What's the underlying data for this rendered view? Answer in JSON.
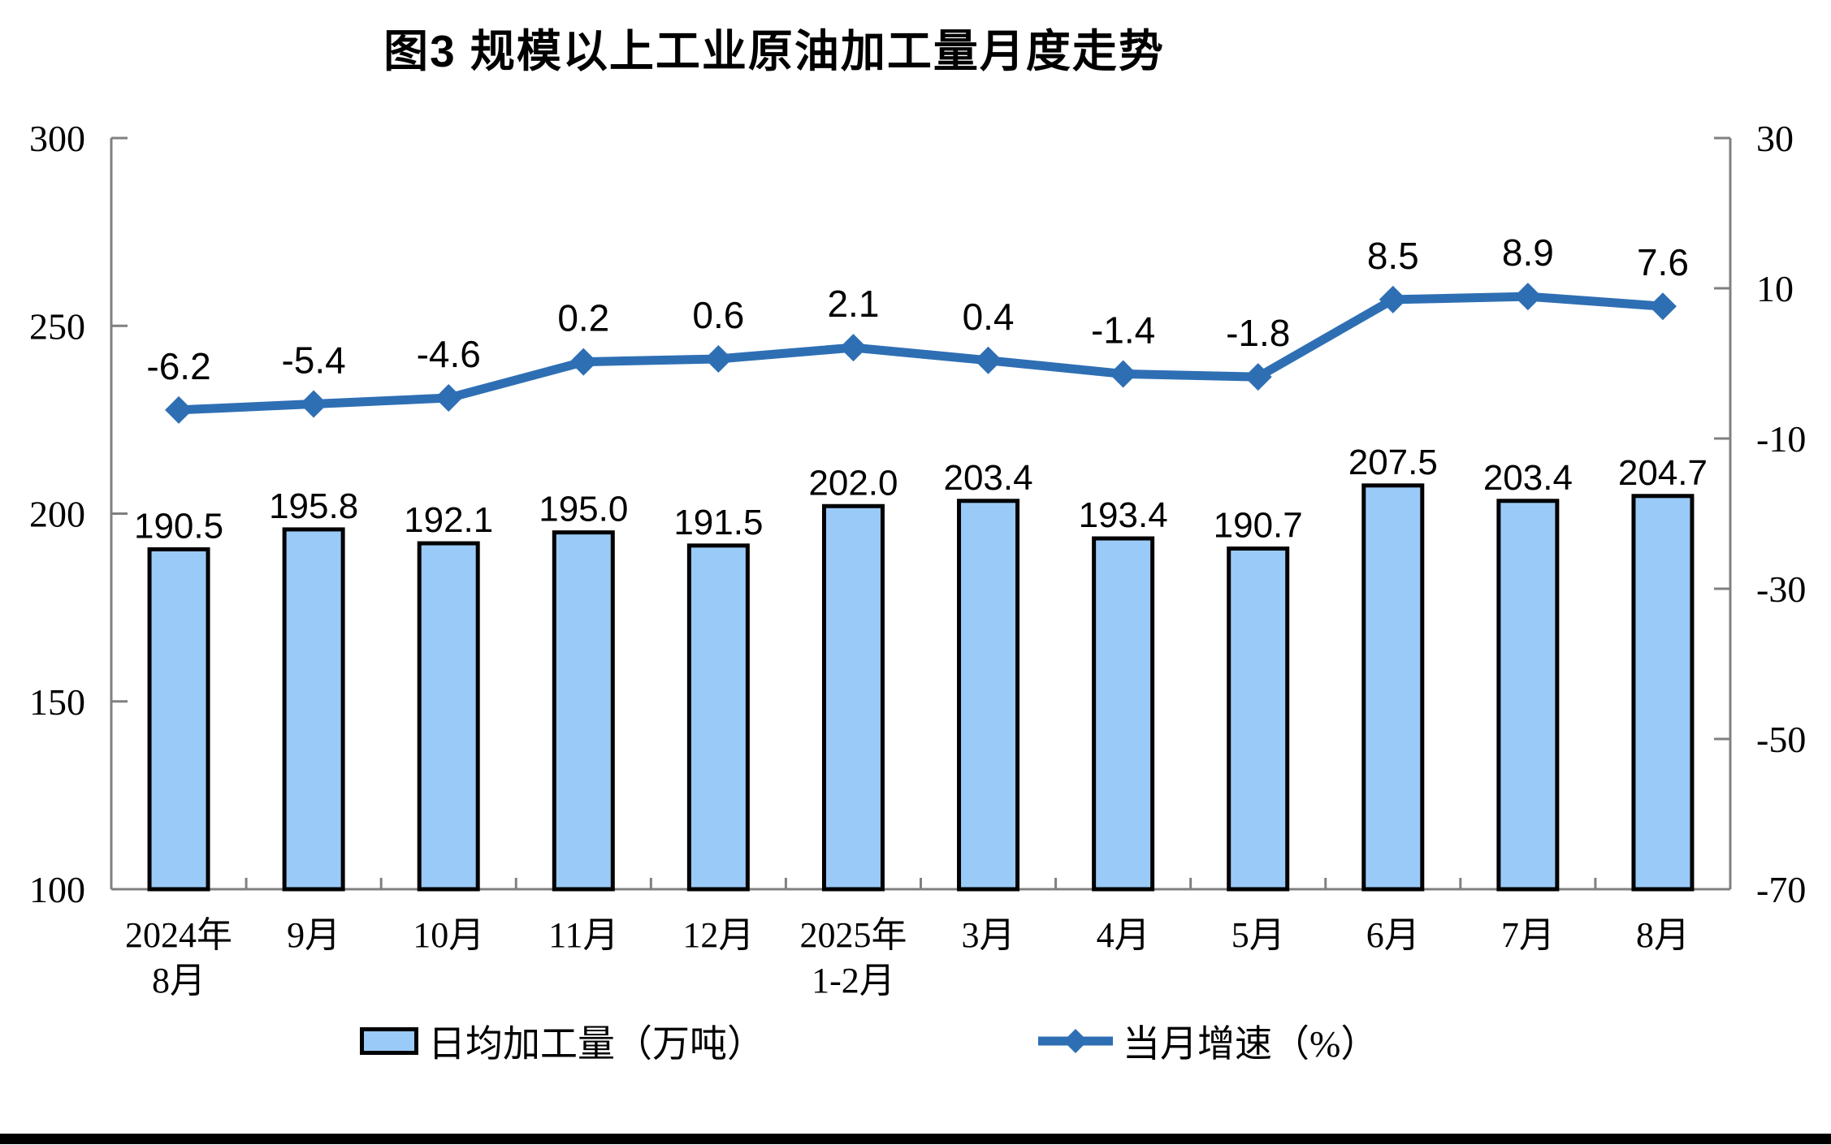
{
  "title": "图3 规模以上工业原油加工量月度走势",
  "chart_data": {
    "type": "bar",
    "subtype": "bar-line-dual-axis",
    "categories": [
      "2024年\n8月",
      "9月",
      "10月",
      "11月",
      "12月",
      "2025年\n1-2月",
      "3月",
      "4月",
      "5月",
      "6月",
      "7月",
      "8月"
    ],
    "series": [
      {
        "name": "日均加工量（万吨）",
        "type": "bar",
        "axis": "left",
        "values": [
          190.5,
          195.8,
          192.1,
          195.0,
          191.5,
          202.0,
          203.4,
          193.4,
          190.7,
          207.5,
          203.4,
          204.7
        ]
      },
      {
        "name": "当月增速（%）",
        "type": "line",
        "axis": "right",
        "values": [
          -6.2,
          -5.4,
          -4.6,
          0.2,
          0.6,
          2.1,
          0.4,
          -1.4,
          -1.8,
          8.5,
          8.9,
          7.6
        ]
      }
    ],
    "left_axis": {
      "min": 100,
      "max": 300,
      "ticks": [
        100,
        150,
        200,
        250,
        300
      ]
    },
    "right_axis": {
      "min": -70,
      "max": 30,
      "ticks": [
        -70,
        -50,
        -30,
        -10,
        10,
        30
      ]
    },
    "grid": false,
    "data_labels": true,
    "legend_position": "bottom"
  },
  "colors": {
    "background": "#FFFFFF",
    "bar_fill": "#9ACAF8",
    "bar_stroke": "#000000",
    "line": "#2E6FB4",
    "axis_line": "#808080",
    "text": "#000000",
    "bottom_rule": "#000000"
  }
}
